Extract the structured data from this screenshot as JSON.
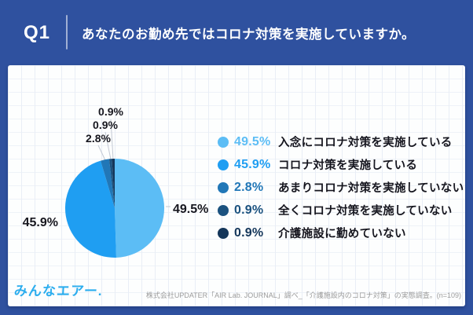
{
  "header": {
    "tag": "Q1",
    "title": "あなたのお勤め先ではコロナ対策を実施していますか。"
  },
  "chart_data": {
    "type": "pie",
    "title": "あなたのお勤め先ではコロナ対策を実施していますか。",
    "values": [
      49.5,
      45.9,
      2.8,
      0.9,
      0.9
    ],
    "value_labels": [
      "49.5%",
      "45.9%",
      "2.8%",
      "0.9%",
      "0.9%"
    ],
    "labels": [
      "入念にコロナ対策を実施している",
      "コロナ対策を実施している",
      "あまりコロナ対策を実施していない",
      "全くコロナ対策を実施していない",
      "介護施設に勤めていない"
    ],
    "colors": [
      "#5cbdf5",
      "#1f9ef2",
      "#2177b7",
      "#1b527f",
      "#14365a"
    ],
    "start_angle_deg": -90,
    "direction": "clockwise",
    "legend_position": "right"
  },
  "footer": {
    "logo": "みんなエアー.",
    "source": "株式会社UPDATER「AIR Lab. JOURNAL」調べ_「介護施設内のコロナ対策」の実態調査。(n=109)"
  },
  "colors": {
    "background": "#2f519f",
    "card": "#fdfefe",
    "header_text": "#ffffff",
    "label_text": "#17171f"
  }
}
